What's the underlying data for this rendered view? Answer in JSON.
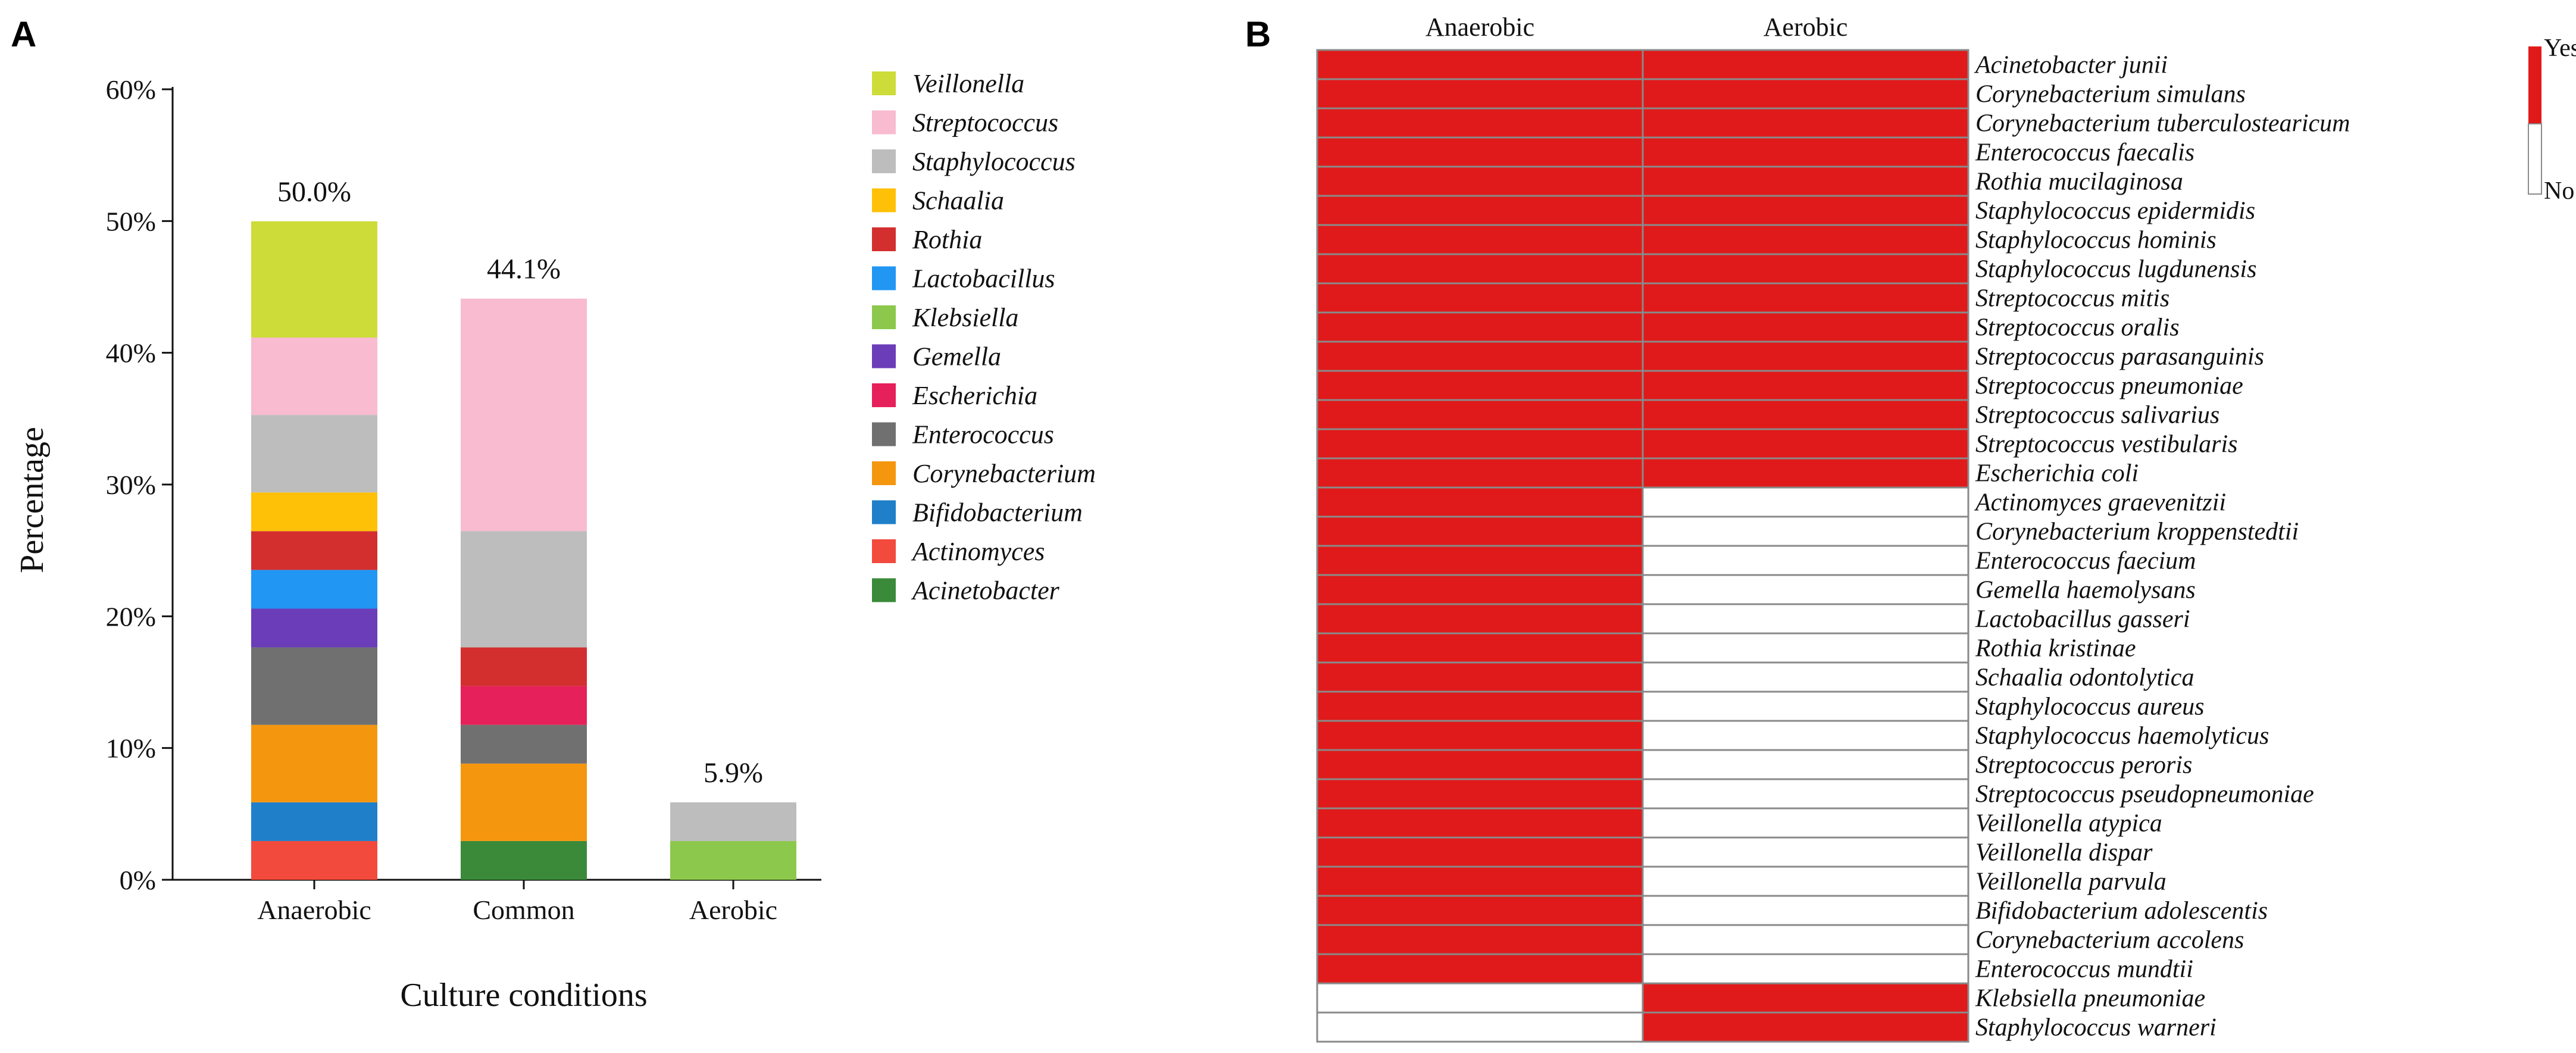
{
  "panel_a_letter": "A",
  "panel_b_letter": "B",
  "chart_data": [
    {
      "type": "bar",
      "stacked": true,
      "title": "",
      "xlabel": "Culture conditions",
      "ylabel": "Percentage",
      "ylim": [
        0,
        60
      ],
      "y_ticks": [
        {
          "value": 0,
          "label": "0%"
        },
        {
          "value": 10,
          "label": "10%"
        },
        {
          "value": 20,
          "label": "20%"
        },
        {
          "value": 30,
          "label": "30%"
        },
        {
          "value": 40,
          "label": "40%"
        },
        {
          "value": 50,
          "label": "50%"
        },
        {
          "value": 60,
          "label": "60%"
        }
      ],
      "categories": [
        "Anaerobic",
        "Common",
        "Aerobic"
      ],
      "totals": [
        "50.0%",
        "44.1%",
        "5.9%"
      ],
      "legend_position": "right",
      "series": [
        {
          "name": "Acinetobacter",
          "color": "#3a8a3a",
          "values": [
            0,
            2.94,
            0
          ]
        },
        {
          "name": "Actinomyces",
          "color": "#f24a3c",
          "values": [
            2.94,
            0,
            0
          ]
        },
        {
          "name": "Bifidobacterium",
          "color": "#1f7fc9",
          "values": [
            2.94,
            0,
            0
          ]
        },
        {
          "name": "Corynebacterium",
          "color": "#f5960f",
          "values": [
            5.88,
            5.88,
            0
          ]
        },
        {
          "name": "Enterococcus",
          "color": "#707070",
          "values": [
            5.88,
            2.94,
            0
          ]
        },
        {
          "name": "Escherichia",
          "color": "#e6205a",
          "values": [
            0,
            2.94,
            0
          ]
        },
        {
          "name": "Gemella",
          "color": "#6b3db8",
          "values": [
            2.94,
            0,
            0
          ]
        },
        {
          "name": "Klebsiella",
          "color": "#8cc84b",
          "values": [
            0,
            0,
            2.94
          ]
        },
        {
          "name": "Lactobacillus",
          "color": "#2196f3",
          "values": [
            2.94,
            0,
            0
          ]
        },
        {
          "name": "Rothia",
          "color": "#d32f2f",
          "values": [
            2.94,
            2.94,
            0
          ]
        },
        {
          "name": "Schaalia",
          "color": "#ffc107",
          "values": [
            2.94,
            0,
            0
          ]
        },
        {
          "name": "Staphylococcus",
          "color": "#bdbdbd",
          "values": [
            5.88,
            8.82,
            2.94
          ]
        },
        {
          "name": "Streptococcus",
          "color": "#f8bbd0",
          "values": [
            5.88,
            17.65,
            0
          ]
        },
        {
          "name": "Veillonella",
          "color": "#cddc39",
          "values": [
            8.82,
            0,
            0
          ]
        }
      ]
    },
    {
      "type": "heatmap",
      "columns": [
        "Anaerobic",
        "Aerobic"
      ],
      "scale": {
        "yes_label": "Yes",
        "no_label": "No",
        "yes_color": "#e01a1a",
        "no_color": "#ffffff"
      },
      "rows": [
        {
          "name": "Acinetobacter junii",
          "values": [
            1,
            1
          ]
        },
        {
          "name": "Corynebacterium simulans",
          "values": [
            1,
            1
          ]
        },
        {
          "name": "Corynebacterium tuberculostearicum",
          "values": [
            1,
            1
          ]
        },
        {
          "name": "Enterococcus faecalis",
          "values": [
            1,
            1
          ]
        },
        {
          "name": "Rothia mucilaginosa",
          "values": [
            1,
            1
          ]
        },
        {
          "name": "Staphylococcus epidermidis",
          "values": [
            1,
            1
          ]
        },
        {
          "name": "Staphylococcus hominis",
          "values": [
            1,
            1
          ]
        },
        {
          "name": "Staphylococcus lugdunensis",
          "values": [
            1,
            1
          ]
        },
        {
          "name": "Streptococcus mitis",
          "values": [
            1,
            1
          ]
        },
        {
          "name": "Streptococcus oralis",
          "values": [
            1,
            1
          ]
        },
        {
          "name": "Streptococcus parasanguinis",
          "values": [
            1,
            1
          ]
        },
        {
          "name": "Streptococcus pneumoniae",
          "values": [
            1,
            1
          ]
        },
        {
          "name": "Streptococcus salivarius",
          "values": [
            1,
            1
          ]
        },
        {
          "name": "Streptococcus vestibularis",
          "values": [
            1,
            1
          ]
        },
        {
          "name": "Escherichia coli",
          "values": [
            1,
            1
          ]
        },
        {
          "name": "Actinomyces graevenitzii",
          "values": [
            1,
            0
          ]
        },
        {
          "name": "Corynebacterium kroppenstedtii",
          "values": [
            1,
            0
          ]
        },
        {
          "name": "Enterococcus faecium",
          "values": [
            1,
            0
          ]
        },
        {
          "name": "Gemella haemolysans",
          "values": [
            1,
            0
          ]
        },
        {
          "name": "Lactobacillus gasseri",
          "values": [
            1,
            0
          ]
        },
        {
          "name": "Rothia kristinae",
          "values": [
            1,
            0
          ]
        },
        {
          "name": "Schaalia odontolytica",
          "values": [
            1,
            0
          ]
        },
        {
          "name": "Staphylococcus aureus",
          "values": [
            1,
            0
          ]
        },
        {
          "name": "Staphylococcus haemolyticus",
          "values": [
            1,
            0
          ]
        },
        {
          "name": "Streptococcus peroris",
          "values": [
            1,
            0
          ]
        },
        {
          "name": "Streptococcus pseudopneumoniae",
          "values": [
            1,
            0
          ]
        },
        {
          "name": "Veillonella atypica",
          "values": [
            1,
            0
          ]
        },
        {
          "name": "Veillonella dispar",
          "values": [
            1,
            0
          ]
        },
        {
          "name": "Veillonella parvula",
          "values": [
            1,
            0
          ]
        },
        {
          "name": "Bifidobacterium adolescentis",
          "values": [
            1,
            0
          ]
        },
        {
          "name": "Corynebacterium accolens",
          "values": [
            1,
            0
          ]
        },
        {
          "name": "Enterococcus mundtii",
          "values": [
            1,
            0
          ]
        },
        {
          "name": "Klebsiella pneumoniae",
          "values": [
            0,
            1
          ]
        },
        {
          "name": "Staphylococcus warneri",
          "values": [
            0,
            1
          ]
        }
      ]
    }
  ]
}
